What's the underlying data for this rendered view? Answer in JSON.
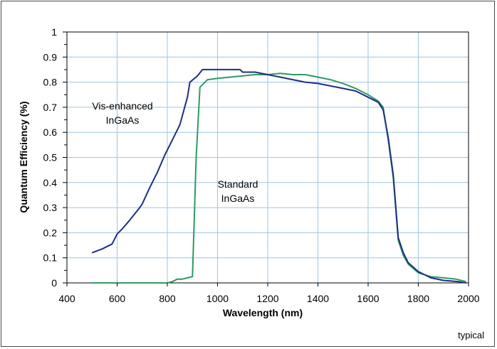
{
  "chart_data": {
    "type": "line",
    "xlabel": "Wavelength (nm)",
    "ylabel": "Quantum Efficiency (%)",
    "xlim": [
      400,
      2000
    ],
    "ylim": [
      0,
      1
    ],
    "xticks": [
      "400",
      "600",
      "800",
      "1000",
      "1200",
      "1400",
      "1600",
      "1800",
      "2000"
    ],
    "yticks": [
      "0",
      "0.1",
      "0.2",
      "0.3",
      "0.4",
      "0.5",
      "0.6",
      "0.7",
      "0.8",
      "0.9",
      "1"
    ],
    "grid": true,
    "note": "typical",
    "series": [
      {
        "name": "Vis-enhanced InGaAs",
        "label_lines": [
          "Vis-enhanced",
          "InGaAs"
        ],
        "color": "#1f2f86",
        "points": [
          [
            500,
            0.12
          ],
          [
            540,
            0.135
          ],
          [
            580,
            0.155
          ],
          [
            600,
            0.195
          ],
          [
            620,
            0.215
          ],
          [
            650,
            0.25
          ],
          [
            690,
            0.3
          ],
          [
            700,
            0.315
          ],
          [
            730,
            0.38
          ],
          [
            760,
            0.44
          ],
          [
            790,
            0.51
          ],
          [
            820,
            0.57
          ],
          [
            850,
            0.63
          ],
          [
            880,
            0.74
          ],
          [
            890,
            0.8
          ],
          [
            920,
            0.825
          ],
          [
            940,
            0.85
          ],
          [
            1000,
            0.85
          ],
          [
            1050,
            0.85
          ],
          [
            1090,
            0.85
          ],
          [
            1100,
            0.84
          ],
          [
            1150,
            0.84
          ],
          [
            1200,
            0.83
          ],
          [
            1250,
            0.82
          ],
          [
            1300,
            0.81
          ],
          [
            1350,
            0.8
          ],
          [
            1400,
            0.795
          ],
          [
            1450,
            0.785
          ],
          [
            1500,
            0.775
          ],
          [
            1550,
            0.765
          ],
          [
            1600,
            0.74
          ],
          [
            1640,
            0.72
          ],
          [
            1660,
            0.69
          ],
          [
            1680,
            0.58
          ],
          [
            1700,
            0.43
          ],
          [
            1720,
            0.18
          ],
          [
            1740,
            0.12
          ],
          [
            1760,
            0.08
          ],
          [
            1800,
            0.045
          ],
          [
            1850,
            0.02
          ],
          [
            1900,
            0.01
          ],
          [
            1960,
            0.005
          ],
          [
            1990,
            0.0
          ]
        ]
      },
      {
        "name": "Standard InGaAs",
        "label_lines": [
          "Standard",
          "InGaAs"
        ],
        "color": "#2e9a63",
        "points": [
          [
            500,
            0.0
          ],
          [
            800,
            0.0
          ],
          [
            820,
            0.005
          ],
          [
            840,
            0.015
          ],
          [
            860,
            0.015
          ],
          [
            880,
            0.02
          ],
          [
            900,
            0.025
          ],
          [
            915,
            0.5
          ],
          [
            930,
            0.78
          ],
          [
            960,
            0.81
          ],
          [
            1000,
            0.815
          ],
          [
            1050,
            0.82
          ],
          [
            1100,
            0.825
          ],
          [
            1150,
            0.83
          ],
          [
            1200,
            0.83
          ],
          [
            1250,
            0.835
          ],
          [
            1300,
            0.83
          ],
          [
            1350,
            0.83
          ],
          [
            1400,
            0.82
          ],
          [
            1450,
            0.81
          ],
          [
            1500,
            0.795
          ],
          [
            1550,
            0.775
          ],
          [
            1600,
            0.75
          ],
          [
            1640,
            0.725
          ],
          [
            1660,
            0.7
          ],
          [
            1680,
            0.57
          ],
          [
            1700,
            0.42
          ],
          [
            1720,
            0.17
          ],
          [
            1740,
            0.11
          ],
          [
            1760,
            0.075
          ],
          [
            1800,
            0.04
          ],
          [
            1850,
            0.025
          ],
          [
            1900,
            0.02
          ],
          [
            1950,
            0.015
          ],
          [
            1990,
            0.005
          ]
        ]
      }
    ]
  }
}
